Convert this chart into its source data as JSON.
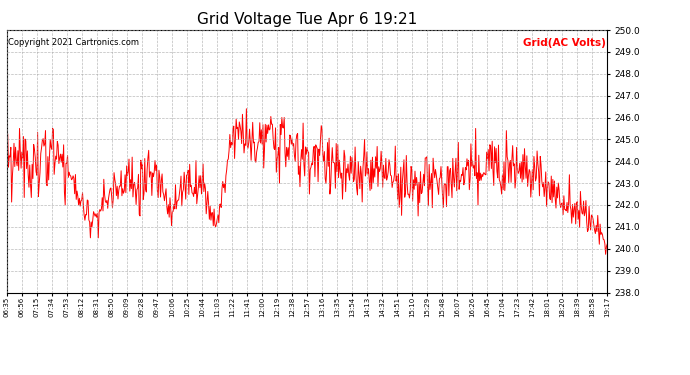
{
  "title": "Grid Voltage Tue Apr 6 19:21",
  "copyright": "Copyright 2021 Cartronics.com",
  "legend_label": "Grid(AC Volts)",
  "legend_color": "#ff0000",
  "line_color": "#ff0000",
  "background_color": "#ffffff",
  "grid_color": "#aaaaaa",
  "ylim": [
    238.0,
    250.0
  ],
  "yticks": [
    238.0,
    239.0,
    240.0,
    241.0,
    242.0,
    243.0,
    244.0,
    245.0,
    246.0,
    247.0,
    248.0,
    249.0,
    250.0
  ],
  "xtick_labels": [
    "06:35",
    "06:56",
    "07:15",
    "07:34",
    "07:53",
    "08:12",
    "08:31",
    "08:50",
    "09:09",
    "09:28",
    "09:47",
    "10:06",
    "10:25",
    "10:44",
    "11:03",
    "11:22",
    "11:41",
    "12:00",
    "12:19",
    "12:38",
    "12:57",
    "13:16",
    "13:35",
    "13:54",
    "14:13",
    "14:32",
    "14:51",
    "15:10",
    "15:29",
    "15:48",
    "16:07",
    "16:26",
    "16:45",
    "17:04",
    "17:23",
    "17:42",
    "18:01",
    "18:20",
    "18:39",
    "18:58",
    "19:17"
  ],
  "line_width": 0.7,
  "title_fontsize": 11,
  "copyright_fontsize": 6,
  "legend_fontsize": 7.5,
  "ytick_fontsize": 6.5,
  "xtick_fontsize": 5.0
}
